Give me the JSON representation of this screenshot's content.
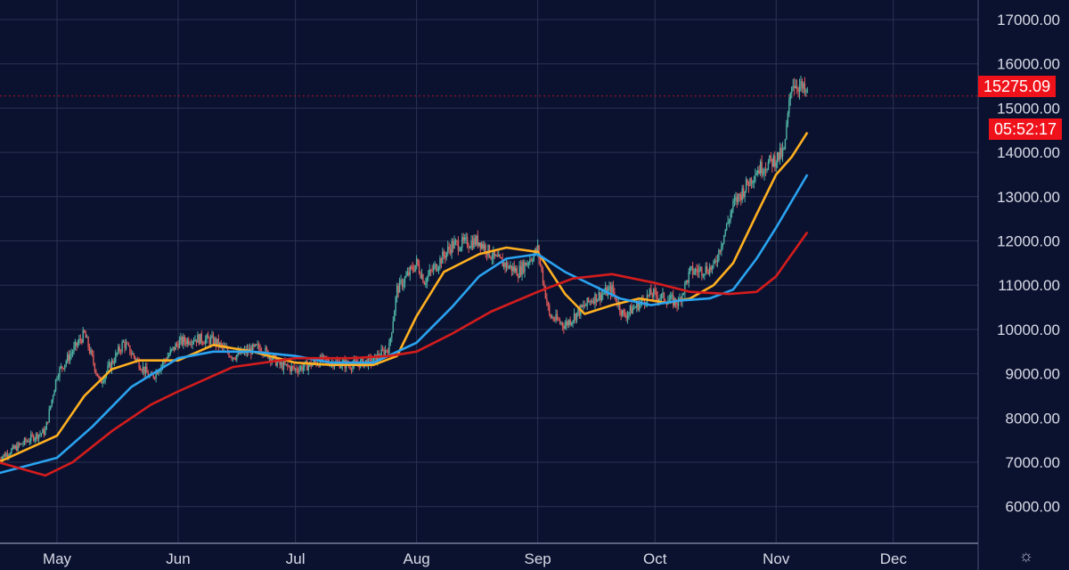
{
  "chart_data": {
    "type": "candlestick",
    "title": "",
    "xlabel": "",
    "ylabel": "",
    "ylim": [
      5500,
      17400
    ],
    "y_ticks": [
      "6000.00",
      "7000.00",
      "8000.00",
      "9000.00",
      "10000.00",
      "11000.00",
      "12000.00",
      "13000.00",
      "14000.00",
      "15000.00",
      "16000.00",
      "17000.00"
    ],
    "x_ticks": [
      {
        "label": "May",
        "date": "2020-05-01"
      },
      {
        "label": "Jun",
        "date": "2020-06-01"
      },
      {
        "label": "Jul",
        "date": "2020-07-01"
      },
      {
        "label": "Aug",
        "date": "2020-08-01"
      },
      {
        "label": "Sep",
        "date": "2020-09-01"
      },
      {
        "label": "Oct",
        "date": "2020-10-01"
      },
      {
        "label": "Nov",
        "date": "2020-11-01"
      },
      {
        "label": "Dec",
        "date": "2020-12-01"
      }
    ],
    "grid": true,
    "price_path": [
      [
        "2020-04-16",
        7080
      ],
      [
        "2020-04-25",
        7580
      ],
      [
        "2020-04-28",
        7700
      ],
      [
        "2020-05-01",
        8990
      ],
      [
        "2020-05-08",
        9900
      ],
      [
        "2020-05-12",
        8790
      ],
      [
        "2020-05-18",
        9700
      ],
      [
        "2020-05-25",
        8890
      ],
      [
        "2020-06-01",
        9700
      ],
      [
        "2020-06-05",
        9800
      ],
      [
        "2020-06-10",
        9750
      ],
      [
        "2020-06-15",
        9400
      ],
      [
        "2020-06-22",
        9600
      ],
      [
        "2020-06-27",
        9200
      ],
      [
        "2020-07-01",
        9100
      ],
      [
        "2020-07-08",
        9300
      ],
      [
        "2020-07-15",
        9200
      ],
      [
        "2020-07-21",
        9300
      ],
      [
        "2020-07-25",
        9600
      ],
      [
        "2020-07-27",
        10900
      ],
      [
        "2020-08-01",
        11500
      ],
      [
        "2020-08-03",
        11100
      ],
      [
        "2020-08-10",
        11900
      ],
      [
        "2020-08-17",
        12000
      ],
      [
        "2020-08-21",
        11600
      ],
      [
        "2020-08-27",
        11300
      ],
      [
        "2020-09-01",
        11800
      ],
      [
        "2020-09-04",
        10300
      ],
      [
        "2020-09-08",
        10100
      ],
      [
        "2020-09-15",
        10700
      ],
      [
        "2020-09-20",
        10900
      ],
      [
        "2020-09-23",
        10300
      ],
      [
        "2020-09-30",
        10800
      ],
      [
        "2020-10-07",
        10600
      ],
      [
        "2020-10-10",
        11300
      ],
      [
        "2020-10-16",
        11400
      ],
      [
        "2020-10-21",
        12800
      ],
      [
        "2020-10-27",
        13600
      ],
      [
        "2020-10-31",
        13800
      ],
      [
        "2020-11-03",
        14000
      ],
      [
        "2020-11-05",
        15600
      ],
      [
        "2020-11-07",
        15500
      ],
      [
        "2020-11-09",
        15275
      ]
    ],
    "series": [
      {
        "color": "#ffb020",
        "points": [
          [
            "2020-04-16",
            7000
          ],
          [
            "2020-05-01",
            7600
          ],
          [
            "2020-05-08",
            8500
          ],
          [
            "2020-05-15",
            9100
          ],
          [
            "2020-05-22",
            9300
          ],
          [
            "2020-06-01",
            9300
          ],
          [
            "2020-06-10",
            9650
          ],
          [
            "2020-06-20",
            9500
          ],
          [
            "2020-07-01",
            9250
          ],
          [
            "2020-07-10",
            9200
          ],
          [
            "2020-07-21",
            9200
          ],
          [
            "2020-07-27",
            9400
          ],
          [
            "2020-08-01",
            10300
          ],
          [
            "2020-08-08",
            11300
          ],
          [
            "2020-08-17",
            11700
          ],
          [
            "2020-08-24",
            11850
          ],
          [
            "2020-09-01",
            11750
          ],
          [
            "2020-09-08",
            10800
          ],
          [
            "2020-09-13",
            10350
          ],
          [
            "2020-09-20",
            10550
          ],
          [
            "2020-09-27",
            10700
          ],
          [
            "2020-10-04",
            10600
          ],
          [
            "2020-10-10",
            10700
          ],
          [
            "2020-10-16",
            11000
          ],
          [
            "2020-10-21",
            11500
          ],
          [
            "2020-10-27",
            12600
          ],
          [
            "2020-11-01",
            13500
          ],
          [
            "2020-11-05",
            13900
          ],
          [
            "2020-11-09",
            14450
          ]
        ]
      },
      {
        "color": "#2aa3f0",
        "points": [
          [
            "2020-04-16",
            6750
          ],
          [
            "2020-05-01",
            7100
          ],
          [
            "2020-05-10",
            7800
          ],
          [
            "2020-05-20",
            8700
          ],
          [
            "2020-06-01",
            9350
          ],
          [
            "2020-06-10",
            9500
          ],
          [
            "2020-06-20",
            9500
          ],
          [
            "2020-07-01",
            9400
          ],
          [
            "2020-07-10",
            9250
          ],
          [
            "2020-07-21",
            9250
          ],
          [
            "2020-08-01",
            9700
          ],
          [
            "2020-08-10",
            10500
          ],
          [
            "2020-08-17",
            11200
          ],
          [
            "2020-08-24",
            11600
          ],
          [
            "2020-09-01",
            11700
          ],
          [
            "2020-09-08",
            11300
          ],
          [
            "2020-09-15",
            11000
          ],
          [
            "2020-09-22",
            10700
          ],
          [
            "2020-09-30",
            10550
          ],
          [
            "2020-10-07",
            10650
          ],
          [
            "2020-10-15",
            10700
          ],
          [
            "2020-10-21",
            10900
          ],
          [
            "2020-10-27",
            11600
          ],
          [
            "2020-11-01",
            12300
          ],
          [
            "2020-11-09",
            13500
          ]
        ]
      },
      {
        "color": "#d41c1c",
        "points": [
          [
            "2020-04-16",
            7000
          ],
          [
            "2020-04-28",
            6700
          ],
          [
            "2020-05-05",
            7000
          ],
          [
            "2020-05-15",
            7700
          ],
          [
            "2020-05-25",
            8300
          ],
          [
            "2020-06-01",
            8600
          ],
          [
            "2020-06-15",
            9150
          ],
          [
            "2020-07-01",
            9350
          ],
          [
            "2020-07-15",
            9350
          ],
          [
            "2020-07-25",
            9400
          ],
          [
            "2020-08-01",
            9500
          ],
          [
            "2020-08-10",
            9900
          ],
          [
            "2020-08-20",
            10400
          ],
          [
            "2020-09-01",
            10850
          ],
          [
            "2020-09-10",
            11150
          ],
          [
            "2020-09-20",
            11250
          ],
          [
            "2020-10-01",
            11050
          ],
          [
            "2020-10-10",
            10850
          ],
          [
            "2020-10-20",
            10800
          ],
          [
            "2020-10-27",
            10850
          ],
          [
            "2020-11-01",
            11200
          ],
          [
            "2020-11-09",
            12200
          ]
        ]
      }
    ],
    "up_color": "#4fb3a3",
    "down_color": "#e05a5a",
    "last_price": 15275.09,
    "last_price_label": "15275.09",
    "countdown": "05:52:17"
  },
  "colors": {
    "background": "#0b1230",
    "grid": "#2a3352",
    "accent": "#f0121a"
  },
  "settings_icon": "gear-icon"
}
